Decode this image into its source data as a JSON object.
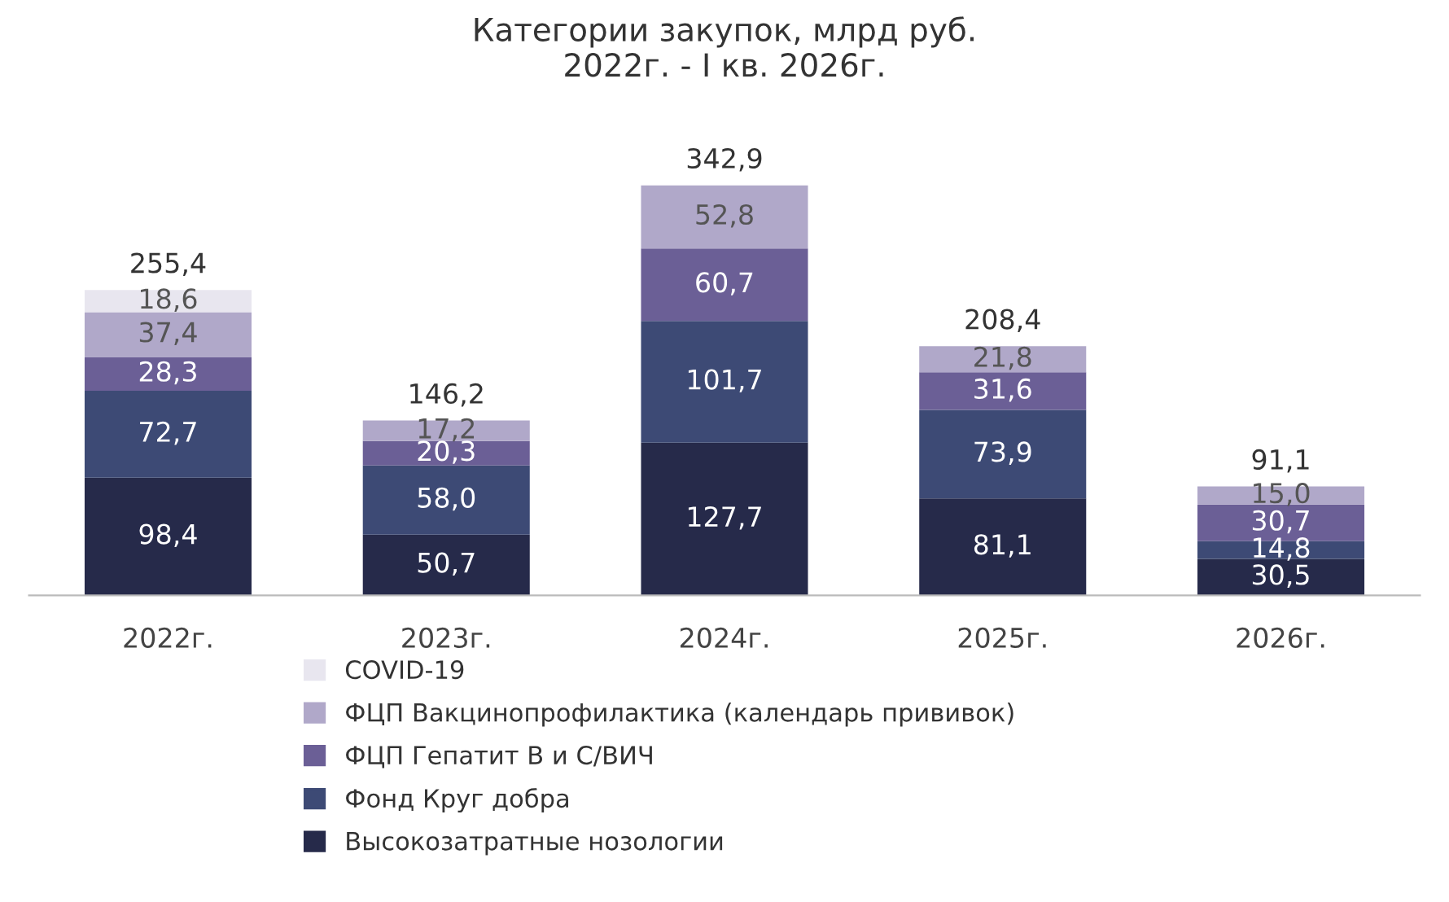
{
  "chart_data": {
    "type": "bar",
    "stacked": true,
    "title": "Категории закупок, млрд руб.\n2022г. - I кв. 2026г.",
    "categories": [
      "2022г.",
      "2023г.",
      "2024г.",
      "2025г.",
      "2026г."
    ],
    "series": [
      {
        "name": "Высокозатратные нозологии",
        "color": "#262a4a",
        "values": [
          98.4,
          50.7,
          127.7,
          81.1,
          30.5
        ],
        "value_labels": [
          "98,4",
          "50,7",
          "127,7",
          "81,1",
          "30,5"
        ]
      },
      {
        "name": "Фонд Круг добра",
        "color": "#3d4a75",
        "values": [
          72.7,
          58.0,
          101.7,
          73.9,
          14.8
        ],
        "value_labels": [
          "72,7",
          "58,0",
          "101,7",
          "73,9",
          "14,8"
        ]
      },
      {
        "name": "ФЦП Гепатит В и С/ВИЧ",
        "color": "#6b5f96",
        "values": [
          28.3,
          20.3,
          60.7,
          31.6,
          30.7
        ],
        "value_labels": [
          "28,3",
          "20,3",
          "60,7",
          "31,6",
          "30,7"
        ]
      },
      {
        "name": "ФЦП Вакцинопрофилактика (календарь прививок)",
        "color": "#b0a8c9",
        "values": [
          37.4,
          17.2,
          52.8,
          21.8,
          15.0
        ],
        "value_labels": [
          "37,4",
          "17,2",
          "52,8",
          "21,8",
          "15,0"
        ]
      },
      {
        "name": "COVID-19",
        "color": "#e8e6ef",
        "values": [
          18.6,
          null,
          null,
          null,
          null
        ],
        "value_labels": [
          "18,6",
          null,
          null,
          null,
          null
        ]
      }
    ],
    "totals": [
      "255,4",
      "146,2",
      "342,9",
      "208,4",
      "91,1"
    ],
    "legend": "bottom",
    "grid": false
  }
}
